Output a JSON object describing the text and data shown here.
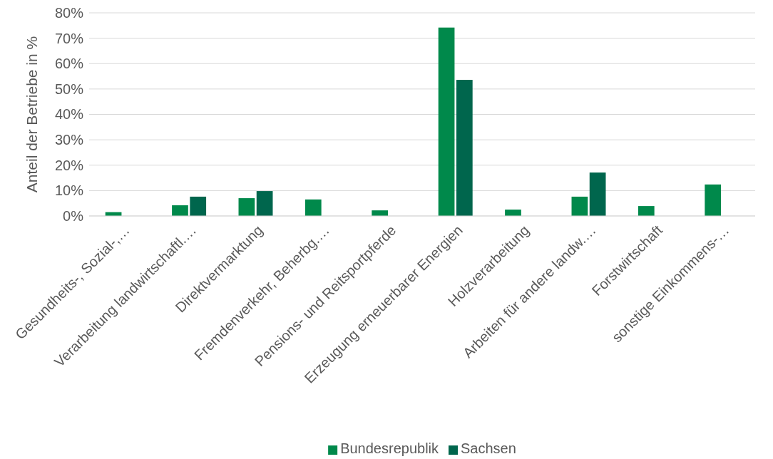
{
  "chart_data": {
    "type": "bar",
    "ylabel": "Anteil der Betriebe in %",
    "categories": [
      "Gesundheits-, Sozial-,…",
      "Verarbeitung landwirtschaftl.…",
      "Direktvermarktung",
      "Fremdenverkehr, Beherbg.…",
      "Pensions- und Reitsportpferde",
      "Erzeugung erneuerbarer Energien",
      "Holzverarbeitung",
      "Arbeiten für andere landw.…",
      "Forstwirtschaft",
      "sonstige Einkommens-…"
    ],
    "series": [
      {
        "name": "Bundesrepublik",
        "color": "#00894b",
        "values": [
          1.5,
          4.2,
          7.0,
          6.5,
          2.2,
          74.2,
          2.5,
          7.6,
          3.9,
          12.4
        ]
      },
      {
        "name": "Sachsen",
        "color": "#00664d",
        "values": [
          null,
          7.6,
          9.8,
          null,
          null,
          53.6,
          null,
          17.1,
          null,
          null
        ]
      }
    ],
    "ylim": [
      0,
      80
    ],
    "yticks": [
      {
        "value": 0,
        "label": "0%"
      },
      {
        "value": 10,
        "label": "10%"
      },
      {
        "value": 20,
        "label": "20%"
      },
      {
        "value": 30,
        "label": "30%"
      },
      {
        "value": 40,
        "label": "40%"
      },
      {
        "value": 50,
        "label": "50%"
      },
      {
        "value": 60,
        "label": "60%"
      },
      {
        "value": 70,
        "label": "70%"
      },
      {
        "value": 80,
        "label": "80%"
      }
    ],
    "grid": "y",
    "legend": "bottom"
  }
}
